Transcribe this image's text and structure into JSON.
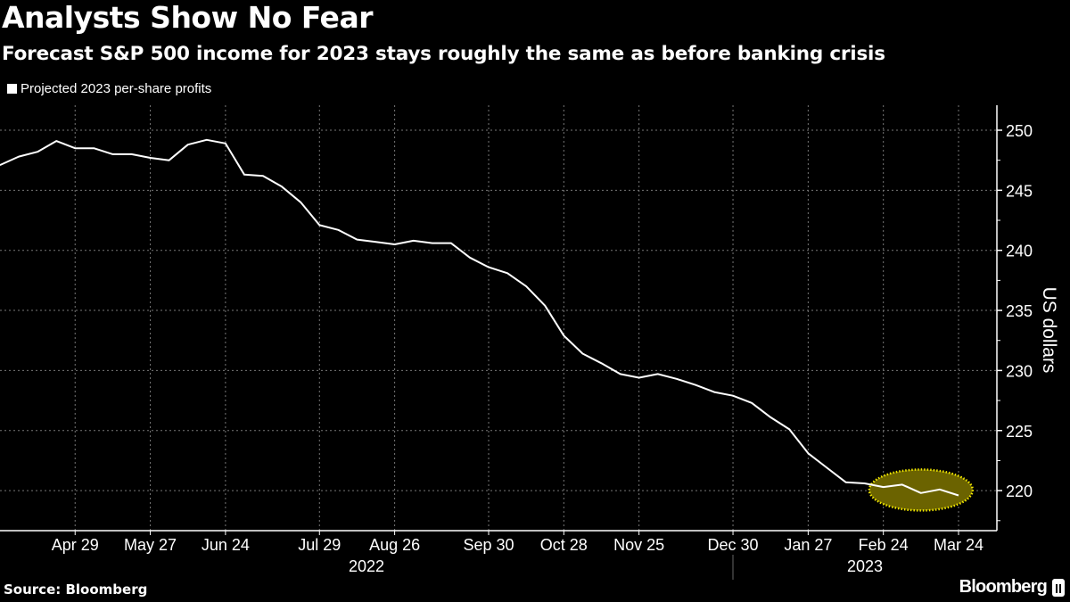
{
  "chart_data": {
    "type": "line",
    "title": "Analysts Show No Fear",
    "subtitle": "Forecast S&P 500 income for 2023 stays roughly the same as before banking crisis",
    "ylabel": "US dollars",
    "xlabel": "",
    "ylim": [
      216.5,
      252
    ],
    "yticks": [
      220,
      225,
      230,
      235,
      240,
      245,
      250
    ],
    "grid": true,
    "legend": {
      "placement": "top-left",
      "entries": [
        "Projected 2023 per-share profits"
      ]
    },
    "series": [
      {
        "name": "Projected 2023 per-share profits",
        "color": "#ffffff",
        "x": [
          "2022-04-01",
          "2022-04-08",
          "2022-04-15",
          "2022-04-22",
          "2022-04-29",
          "2022-05-06",
          "2022-05-13",
          "2022-05-20",
          "2022-05-27",
          "2022-06-03",
          "2022-06-10",
          "2022-06-17",
          "2022-06-24",
          "2022-07-01",
          "2022-07-08",
          "2022-07-15",
          "2022-07-22",
          "2022-07-29",
          "2022-08-05",
          "2022-08-12",
          "2022-08-19",
          "2022-08-26",
          "2022-09-02",
          "2022-09-09",
          "2022-09-16",
          "2022-09-23",
          "2022-09-30",
          "2022-10-07",
          "2022-10-14",
          "2022-10-21",
          "2022-10-28",
          "2022-11-04",
          "2022-11-11",
          "2022-11-18",
          "2022-11-25",
          "2022-12-02",
          "2022-12-09",
          "2022-12-16",
          "2022-12-23",
          "2022-12-30",
          "2023-01-06",
          "2023-01-13",
          "2023-01-20",
          "2023-01-27",
          "2023-02-03",
          "2023-02-10",
          "2023-02-17",
          "2023-02-24",
          "2023-03-03",
          "2023-03-10",
          "2023-03-17",
          "2023-03-24"
        ],
        "values": [
          247.1,
          247.8,
          248.2,
          249.1,
          248.5,
          248.5,
          248.0,
          248.0,
          247.7,
          247.5,
          248.8,
          249.2,
          248.9,
          246.3,
          246.2,
          245.3,
          244.0,
          242.1,
          241.7,
          240.9,
          240.7,
          240.5,
          240.8,
          240.6,
          240.6,
          239.4,
          238.6,
          238.1,
          237.0,
          235.4,
          232.9,
          231.4,
          230.6,
          229.7,
          229.4,
          229.7,
          229.3,
          228.8,
          228.2,
          227.9,
          227.3,
          226.1,
          225.1,
          223.1,
          221.9,
          220.7,
          220.6,
          220.3,
          220.5,
          219.8,
          220.1,
          219.6
        ]
      }
    ],
    "xticks": [
      {
        "label": "Apr 29",
        "index": 4
      },
      {
        "label": "May 27",
        "index": 8
      },
      {
        "label": "Jun 24",
        "index": 12
      },
      {
        "label": "Jul 29",
        "index": 17
      },
      {
        "label": "Aug 26",
        "index": 21
      },
      {
        "label": "Sep 30",
        "index": 26
      },
      {
        "label": "Oct 28",
        "index": 30
      },
      {
        "label": "Nov 25",
        "index": 34
      },
      {
        "label": "Dec 30",
        "index": 39
      },
      {
        "label": "Jan 27",
        "index": 43
      },
      {
        "label": "Feb 24",
        "index": 47
      },
      {
        "label": "Mar 24",
        "index": 51
      }
    ],
    "years": [
      {
        "label": "2022"
      },
      {
        "label": "2023"
      }
    ],
    "highlight": {
      "from_index": 47,
      "to_index": 51,
      "fill": "#6b6300",
      "stroke": "#f0e600"
    }
  },
  "source": "Source: Bloomberg",
  "brand": "Bloomberg"
}
